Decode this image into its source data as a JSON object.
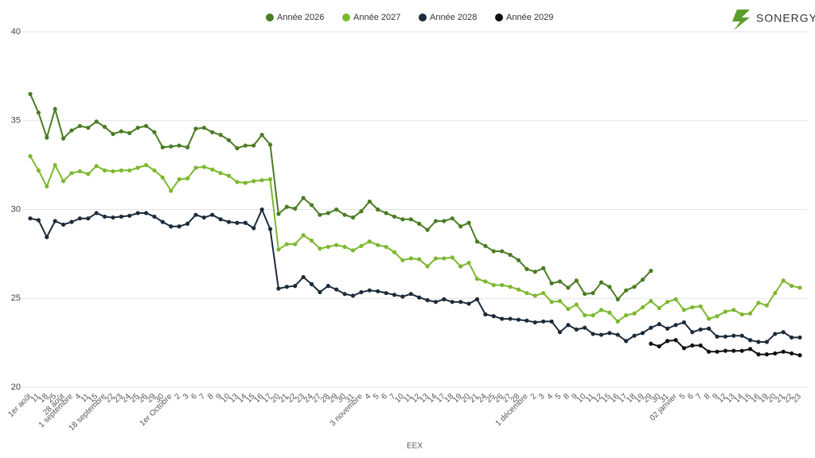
{
  "logo": "SONERGY",
  "chart_data": {
    "type": "line",
    "x_label": "EEX",
    "categories": [
      "1er août",
      "11",
      "18",
      "25",
      "28 août",
      "1 septembre",
      "4",
      "11",
      "15",
      "18 septembre",
      "22",
      "23",
      "24",
      "25",
      "26",
      "29",
      "30",
      "1er Octobre",
      "2",
      "3",
      "6",
      "7",
      "8",
      "9",
      "10",
      "13",
      "14",
      "15",
      "16",
      "17",
      "20",
      "21",
      "22",
      "23",
      "24",
      "27",
      "28",
      "29",
      "30",
      "31",
      "3 novembre",
      "4",
      "5",
      "6",
      "7",
      "10",
      "11",
      "12",
      "13",
      "14",
      "17",
      "18",
      "19",
      "20",
      "21",
      "24",
      "25",
      "26",
      "27",
      "28",
      "1 décembre",
      "2",
      "3",
      "4",
      "5",
      "8",
      "9",
      "10",
      "11",
      "12",
      "15",
      "16",
      "17",
      "18",
      "19",
      "29",
      "30",
      "31",
      "02 janvier",
      "5",
      "6",
      "7",
      "8",
      "9",
      "12",
      "13",
      "14",
      "15",
      "16",
      "19",
      "20",
      "21",
      "22",
      "23"
    ],
    "ylim": [
      20,
      40
    ],
    "yticks": [
      20,
      25,
      30,
      35,
      40
    ],
    "grid": true,
    "legend": "top",
    "series": [
      {
        "name": "Année 2026",
        "color": "#4a7c23",
        "values": [
          36.5,
          35.45,
          34.05,
          35.65,
          34.0,
          34.45,
          34.7,
          34.6,
          34.95,
          34.65,
          34.25,
          34.4,
          34.3,
          34.6,
          34.7,
          34.35,
          33.5,
          33.55,
          33.6,
          33.5,
          34.55,
          34.6,
          34.35,
          34.2,
          33.9,
          33.45,
          33.6,
          33.6,
          34.2,
          33.65,
          29.75,
          30.15,
          30.05,
          30.65,
          30.25,
          29.7,
          29.8,
          30.0,
          29.7,
          29.55,
          29.9,
          30.45,
          30.0,
          29.8,
          29.6,
          29.45,
          29.45,
          29.2,
          28.85,
          29.35,
          29.35,
          29.5,
          29.05,
          29.25,
          28.2,
          27.95,
          27.65,
          27.65,
          27.45,
          27.15,
          26.65,
          26.5,
          26.7,
          25.85,
          25.95,
          25.6,
          26.0,
          25.25,
          25.3,
          25.9,
          25.65,
          24.95,
          25.45,
          25.65,
          26.05,
          26.55,
          null,
          null,
          null,
          null,
          null,
          null,
          null,
          null,
          null,
          null,
          null,
          null,
          null,
          null,
          null,
          null,
          null,
          null
        ]
      },
      {
        "name": "Année 2027",
        "color": "#7cb82f",
        "values": [
          33.0,
          32.2,
          31.3,
          32.5,
          31.6,
          32.05,
          32.15,
          32.0,
          32.45,
          32.2,
          32.15,
          32.2,
          32.2,
          32.35,
          32.5,
          32.2,
          31.8,
          31.05,
          31.7,
          31.75,
          32.35,
          32.4,
          32.25,
          32.05,
          31.9,
          31.55,
          31.5,
          31.6,
          31.65,
          31.7,
          27.75,
          28.05,
          28.05,
          28.55,
          28.25,
          27.8,
          27.9,
          28.0,
          27.9,
          27.7,
          27.95,
          28.2,
          28.0,
          27.9,
          27.6,
          27.15,
          27.25,
          27.2,
          26.8,
          27.25,
          27.25,
          27.3,
          26.8,
          27.0,
          26.1,
          25.95,
          25.75,
          25.75,
          25.65,
          25.5,
          25.3,
          25.15,
          25.3,
          24.8,
          24.85,
          24.4,
          24.65,
          24.05,
          24.05,
          24.35,
          24.2,
          23.7,
          24.05,
          24.15,
          24.5,
          24.85,
          24.45,
          24.8,
          24.95,
          24.35,
          24.5,
          24.55,
          23.85,
          24.0,
          24.25,
          24.35,
          24.1,
          24.15,
          24.75,
          24.6,
          25.3,
          26.0,
          25.7,
          25.6
        ]
      },
      {
        "name": "Année 2028",
        "color": "#1c2b3a",
        "values": [
          29.5,
          29.4,
          28.45,
          29.35,
          29.15,
          29.3,
          29.5,
          29.5,
          29.8,
          29.6,
          29.55,
          29.6,
          29.65,
          29.8,
          29.8,
          29.6,
          29.3,
          29.05,
          29.05,
          29.2,
          29.7,
          29.55,
          29.7,
          29.45,
          29.3,
          29.25,
          29.25,
          28.95,
          30.0,
          28.9,
          25.55,
          25.65,
          25.7,
          26.2,
          25.8,
          25.35,
          25.7,
          25.5,
          25.25,
          25.15,
          25.35,
          25.45,
          25.4,
          25.3,
          25.2,
          25.1,
          25.25,
          25.05,
          24.9,
          24.8,
          24.95,
          24.8,
          24.8,
          24.7,
          24.95,
          24.1,
          24.0,
          23.85,
          23.85,
          23.8,
          23.75,
          23.65,
          23.7,
          23.7,
          23.1,
          23.5,
          23.25,
          23.35,
          23.0,
          22.95,
          23.05,
          22.95,
          22.6,
          22.9,
          23.05,
          23.35,
          23.55,
          23.3,
          23.5,
          23.65,
          23.1,
          23.25,
          23.3,
          22.85,
          22.85,
          22.9,
          22.9,
          22.65,
          22.55,
          22.55,
          23.0,
          23.1,
          22.8,
          22.8
        ]
      },
      {
        "name": "Année 2029",
        "color": "#111111",
        "values": [
          null,
          null,
          null,
          null,
          null,
          null,
          null,
          null,
          null,
          null,
          null,
          null,
          null,
          null,
          null,
          null,
          null,
          null,
          null,
          null,
          null,
          null,
          null,
          null,
          null,
          null,
          null,
          null,
          null,
          null,
          null,
          null,
          null,
          null,
          null,
          null,
          null,
          null,
          null,
          null,
          null,
          null,
          null,
          null,
          null,
          null,
          null,
          null,
          null,
          null,
          null,
          null,
          null,
          null,
          null,
          null,
          null,
          null,
          null,
          null,
          null,
          null,
          null,
          null,
          null,
          null,
          null,
          null,
          null,
          null,
          null,
          null,
          null,
          null,
          null,
          22.45,
          22.3,
          22.6,
          22.65,
          22.2,
          22.35,
          22.35,
          22.0,
          22.0,
          22.05,
          22.05,
          22.05,
          22.15,
          21.85,
          21.85,
          21.9,
          22.0,
          21.9,
          21.8
        ]
      }
    ]
  }
}
